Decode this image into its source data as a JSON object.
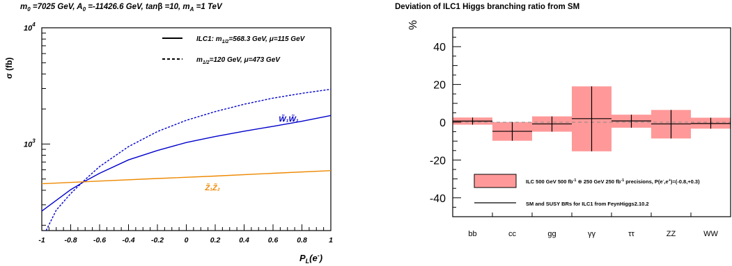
{
  "chart_data": [
    {
      "type": "line",
      "title": "m0 =7025 GeV, A0 =-11426.6 GeV, tanβ =10, mA =1 TeV",
      "title_parts": {
        "m0": "m",
        "m0_sub": "0",
        "m0_val": " =7025 GeV, A",
        "a0_sub": "0",
        "a0_val": " =-11426.6 GeV, tan",
        "beta": "β",
        "tb_val": " =10, m",
        "ma_sub": "A",
        "ma_val": " =1 TeV"
      },
      "xlabel": "P",
      "xlabel_sub": "L",
      "xlabel_arg": "(e",
      "xlabel_sup": "-",
      "xlabel_close": ")",
      "ylabel": "σ (fb)",
      "xlim": [
        -1,
        1
      ],
      "ylim": [
        180,
        10000
      ],
      "yscale": "log",
      "x_ticks": [
        "-1",
        "-0.8",
        "-0.6",
        "-0.4",
        "-0.2",
        "0",
        "0.2",
        "0.4",
        "0.6",
        "0.8",
        "1"
      ],
      "y_ticks": [
        {
          "base": "10",
          "exp": "4",
          "value": 10000
        },
        {
          "base": "10",
          "exp": "3",
          "value": 1000
        }
      ],
      "legend_placement": "top-right",
      "legend": [
        {
          "style": "solid",
          "text": "ILC1: m",
          "sub": "1/2",
          "rest": "=568.3 GeV, μ=115 GeV"
        },
        {
          "style": "dashed",
          "text": "m",
          "sub": "1/2",
          "rest": "=120 GeV, μ=473 GeV"
        }
      ],
      "colors": {
        "ww": "#0000cc",
        "zz": "#ee8800",
        "axis": "#000000"
      },
      "series": [
        {
          "id": "ww_ilc1",
          "style": "solid",
          "color": "#0000cc",
          "x": [
            -1,
            -0.8,
            -0.7,
            -0.6,
            -0.4,
            -0.2,
            0,
            0.2,
            0.4,
            0.6,
            0.8,
            1
          ],
          "y": [
            265,
            405,
            480,
            560,
            730,
            880,
            1030,
            1160,
            1290,
            1420,
            1570,
            1760
          ]
        },
        {
          "id": "ww_alt",
          "style": "dashed",
          "color": "#0000cc",
          "x": [
            -0.97,
            -0.9,
            -0.8,
            -0.7,
            -0.6,
            -0.4,
            -0.2,
            0,
            0.2,
            0.4,
            0.6,
            0.8,
            1
          ],
          "y": [
            180,
            270,
            375,
            495,
            640,
            950,
            1280,
            1600,
            1900,
            2200,
            2480,
            2730,
            2960
          ]
        },
        {
          "id": "zz_ilc1",
          "style": "solid",
          "color": "#ee8800",
          "x": [
            -1,
            -0.6,
            -0.2,
            0.2,
            0.6,
            1
          ],
          "y": [
            455,
            480,
            505,
            530,
            560,
            590
          ]
        }
      ],
      "annotations": [
        {
          "text": "W̃₁W̃₁",
          "color": "#0000cc",
          "x": 0.64,
          "y": 1560
        },
        {
          "text": "Z̃₁Z̃₂",
          "color": "#ee8800",
          "x": 0.13,
          "y": 400
        }
      ]
    },
    {
      "type": "bar",
      "title": "Deviation of ILC1 Higgs branching ratio from SM",
      "ylabel": "%",
      "ylim": [
        -50,
        50
      ],
      "y_ticks": [
        "40",
        "20",
        "0",
        "-20",
        "-40"
      ],
      "categories": [
        "bb",
        "cc",
        "gg",
        "γγ",
        "ττ",
        "ZZ",
        "WW"
      ],
      "central": [
        0.6,
        -4.8,
        -0.9,
        1.9,
        0.7,
        -0.9,
        -0.7
      ],
      "band_low": [
        -1.3,
        -9.8,
        -5.0,
        -15.4,
        -2.9,
        -8.6,
        -3.4
      ],
      "band_high": [
        2.5,
        0.1,
        3.1,
        19.0,
        4.0,
        6.5,
        2.4
      ],
      "colors": {
        "band": "#ff9999",
        "line": "#000000",
        "zero": "#888888"
      },
      "legend": [
        {
          "style": "box",
          "text": "ILC 500 GeV 500 fb",
          "sup1": "-1",
          "mid": " ⊕ 250 GeV 250 fb",
          "sup2": "-1",
          "rest": " precisions, P(e",
          "sup3": "-",
          "comma": ",e",
          "sup4": "+",
          "end": ")=(-0.8,+0.3)"
        },
        {
          "style": "line",
          "text": "SM and SUSY BRs for ILC1 from FeynHiggs2.10.2"
        }
      ],
      "legend_placement": "bottom-center"
    }
  ]
}
